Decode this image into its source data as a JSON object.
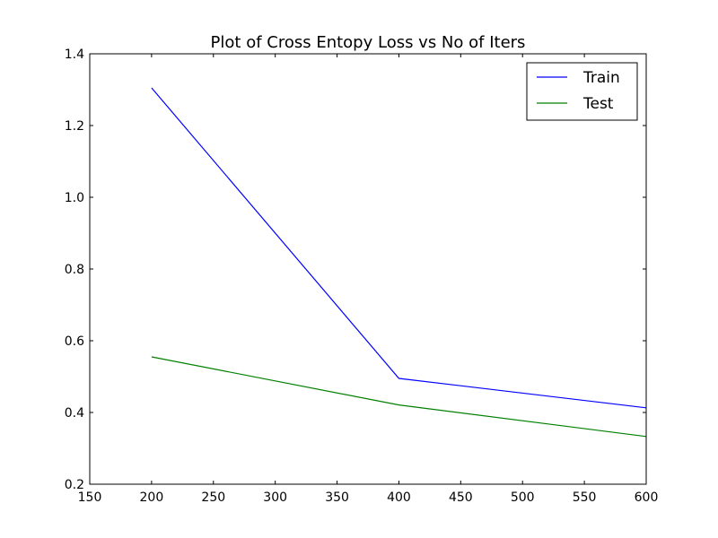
{
  "chart_data": {
    "type": "line",
    "title": "Plot of Cross Entopy Loss vs No of Iters",
    "xlabel": "",
    "ylabel": "",
    "xlim": [
      150,
      600
    ],
    "ylim": [
      0.2,
      1.4
    ],
    "x_ticks": [
      150,
      200,
      250,
      300,
      350,
      400,
      450,
      500,
      550,
      600
    ],
    "x_tick_labels": [
      "150",
      "200",
      "250",
      "300",
      "350",
      "400",
      "450",
      "500",
      "550",
      "600"
    ],
    "y_ticks": [
      0.2,
      0.4,
      0.6,
      0.8,
      1.0,
      1.2,
      1.4
    ],
    "y_tick_labels": [
      "0.2",
      "0.4",
      "0.6",
      "0.8",
      "1.0",
      "1.2",
      "1.4"
    ],
    "grid": false,
    "legend_position": "top-right",
    "x": [
      200,
      400,
      600
    ],
    "series": [
      {
        "name": "Train",
        "color": "#0000ff",
        "values": [
          1.305,
          0.495,
          0.413
        ]
      },
      {
        "name": "Test",
        "color": "#008000",
        "values": [
          0.555,
          0.421,
          0.333
        ]
      }
    ]
  }
}
